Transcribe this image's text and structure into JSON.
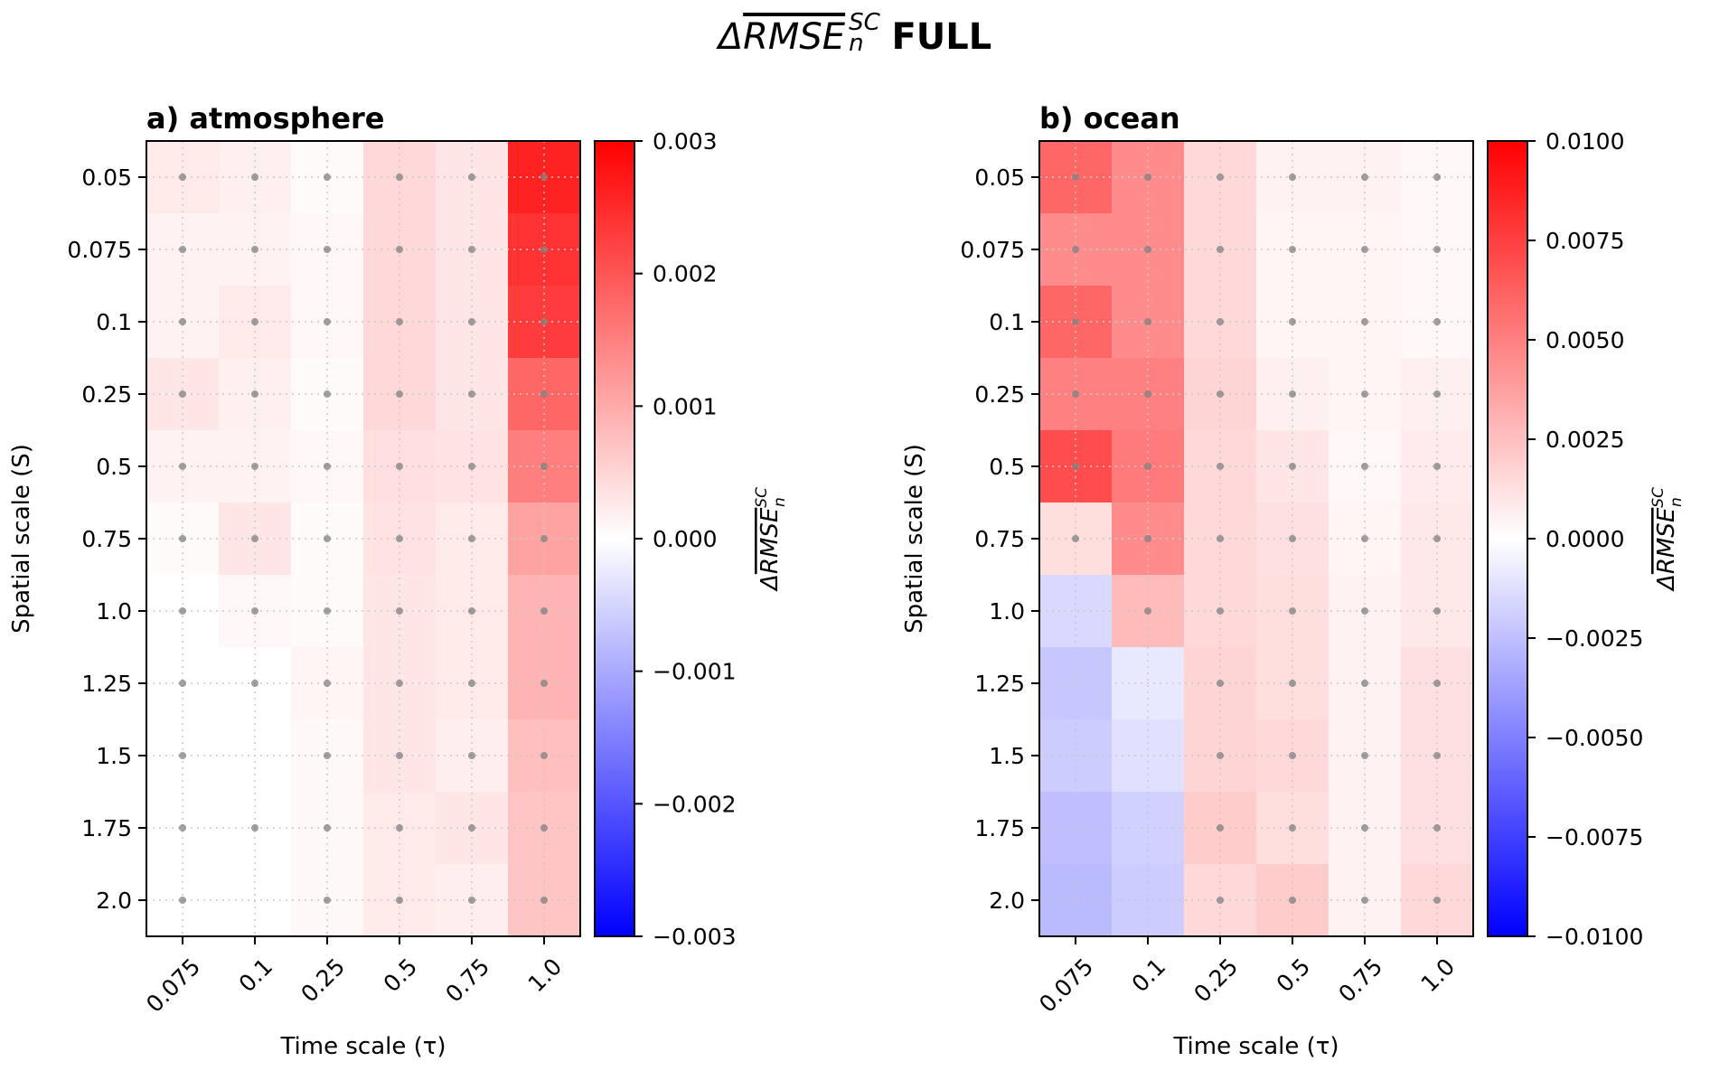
{
  "figure": {
    "suptitle_prefix": "Δ",
    "suptitle_over": "RMSE",
    "suptitle_sup": "SC",
    "suptitle_sub": "n",
    "suptitle_suffix": "FULL"
  },
  "chart_data": [
    {
      "type": "heatmap",
      "title": "a) atmosphere",
      "xlabel": "Time scale (τ)",
      "ylabel": "Spatial scale (S)",
      "x_categories": [
        "0.075",
        "0.1",
        "0.25",
        "0.5",
        "0.75",
        "1.0"
      ],
      "y_categories": [
        "0.05",
        "0.075",
        "0.1",
        "0.25",
        "0.5",
        "0.75",
        "1.0",
        "1.25",
        "1.5",
        "1.75",
        "2.0"
      ],
      "values": [
        [
          0.00025,
          0.00018,
          5e-05,
          0.00045,
          0.0003,
          0.0026
        ],
        [
          0.00015,
          0.00015,
          0.0001,
          0.00045,
          0.0003,
          0.0024
        ],
        [
          0.00015,
          0.00025,
          0.0001,
          0.00045,
          0.0003,
          0.0023
        ],
        [
          0.0003,
          0.00018,
          5e-05,
          0.00045,
          0.0003,
          0.0018
        ],
        [
          0.00015,
          0.00015,
          0.0001,
          0.00038,
          0.00033,
          0.0015
        ],
        [
          5e-05,
          0.0003,
          5e-05,
          0.00033,
          0.00025,
          0.0011
        ],
        [
          0.0,
          0.0001,
          5e-05,
          0.0003,
          0.00025,
          0.00088
        ],
        [
          0.0,
          0.0,
          0.00012,
          0.0003,
          0.00025,
          0.00088
        ],
        [
          0.0,
          0.0,
          8e-05,
          0.0003,
          0.0002,
          0.00075
        ],
        [
          0.0,
          0.0,
          8e-05,
          0.00025,
          0.0003,
          0.0007
        ],
        [
          0.0,
          0.0,
          8e-05,
          0.00025,
          0.0002,
          0.0007
        ]
      ],
      "significance_dots": [
        [
          1,
          1,
          1,
          1,
          1,
          1
        ],
        [
          1,
          1,
          1,
          1,
          1,
          1
        ],
        [
          1,
          1,
          1,
          1,
          1,
          1
        ],
        [
          1,
          1,
          1,
          1,
          1,
          1
        ],
        [
          1,
          1,
          1,
          1,
          1,
          1
        ],
        [
          1,
          1,
          1,
          1,
          1,
          1
        ],
        [
          1,
          1,
          1,
          1,
          1,
          1
        ],
        [
          1,
          1,
          1,
          1,
          1,
          1
        ],
        [
          1,
          0,
          1,
          1,
          1,
          1
        ],
        [
          1,
          1,
          1,
          1,
          1,
          1
        ],
        [
          1,
          0,
          1,
          1,
          1,
          1
        ]
      ],
      "colorbar": {
        "label_prefix": "Δ",
        "label_over": "RMSE",
        "label_sup": "SC",
        "label_sub": "n",
        "vmin": -0.003,
        "vmax": 0.003,
        "ticks": [
          0.003,
          0.002,
          0.001,
          0.0,
          -0.001,
          -0.002,
          -0.003
        ],
        "tick_labels": [
          "0.003",
          "0.002",
          "0.001",
          "0.000",
          "−0.001",
          "−0.002",
          "−0.003"
        ]
      },
      "cmap": "bwr",
      "grid": "dotted"
    },
    {
      "type": "heatmap",
      "title": "b) ocean",
      "xlabel": "Time scale (τ)",
      "ylabel": "Spatial scale (S)",
      "x_categories": [
        "0.075",
        "0.1",
        "0.25",
        "0.5",
        "0.75",
        "1.0"
      ],
      "y_categories": [
        "0.05",
        "0.075",
        "0.1",
        "0.25",
        "0.5",
        "0.75",
        "1.0",
        "1.25",
        "1.5",
        "1.75",
        "2.0"
      ],
      "values": [
        [
          0.006,
          0.0045,
          0.0015,
          0.0005,
          0.0005,
          0.0003
        ],
        [
          0.0045,
          0.0045,
          0.0015,
          0.0004,
          0.0004,
          0.0003
        ],
        [
          0.006,
          0.0045,
          0.0015,
          0.0004,
          0.0004,
          0.0003
        ],
        [
          0.005,
          0.005,
          0.0017,
          0.0006,
          0.0004,
          0.0006
        ],
        [
          0.007,
          0.0052,
          0.0015,
          0.001,
          0.0003,
          0.0008
        ],
        [
          0.0013,
          0.0045,
          0.0015,
          0.0012,
          0.0004,
          0.0009
        ],
        [
          -0.0015,
          0.0027,
          0.0015,
          0.0013,
          0.0005,
          0.0009
        ],
        [
          -0.0022,
          -0.0009,
          0.0017,
          0.0013,
          0.0005,
          0.0012
        ],
        [
          -0.002,
          -0.0012,
          0.0017,
          0.0015,
          0.0005,
          0.0012
        ],
        [
          -0.0025,
          -0.0018,
          0.002,
          0.0013,
          0.0005,
          0.0012
        ],
        [
          -0.0027,
          -0.002,
          0.0015,
          0.002,
          0.0005,
          0.0015
        ]
      ],
      "significance_dots": [
        [
          1,
          1,
          1,
          1,
          1,
          1
        ],
        [
          1,
          1,
          1,
          1,
          1,
          1
        ],
        [
          1,
          1,
          1,
          1,
          1,
          1
        ],
        [
          1,
          1,
          1,
          1,
          1,
          1
        ],
        [
          1,
          1,
          1,
          1,
          1,
          1
        ],
        [
          1,
          1,
          1,
          1,
          1,
          1
        ],
        [
          0,
          1,
          1,
          1,
          1,
          1
        ],
        [
          0,
          0,
          1,
          1,
          1,
          1
        ],
        [
          0,
          0,
          1,
          1,
          1,
          1
        ],
        [
          0,
          0,
          1,
          1,
          1,
          1
        ],
        [
          0,
          0,
          1,
          1,
          1,
          1
        ]
      ],
      "colorbar": {
        "label_prefix": "Δ",
        "label_over": "RMSE",
        "label_sup": "SC",
        "label_sub": "n",
        "vmin": -0.01,
        "vmax": 0.01,
        "ticks": [
          0.01,
          0.0075,
          0.005,
          0.0025,
          0.0,
          -0.0025,
          -0.005,
          -0.0075,
          -0.01
        ],
        "tick_labels": [
          "0.0100",
          "0.0075",
          "0.0050",
          "0.0025",
          "0.0000",
          "−0.0025",
          "−0.0050",
          "−0.0075",
          "−0.0100"
        ]
      },
      "cmap": "bwr",
      "grid": "dotted"
    }
  ],
  "colors": {
    "cmap_low": "#0000ff",
    "cmap_mid": "#ffffff",
    "cmap_high": "#ff0000",
    "dot": "#808080",
    "grid": "#c8c8c8",
    "axis": "#000000"
  }
}
